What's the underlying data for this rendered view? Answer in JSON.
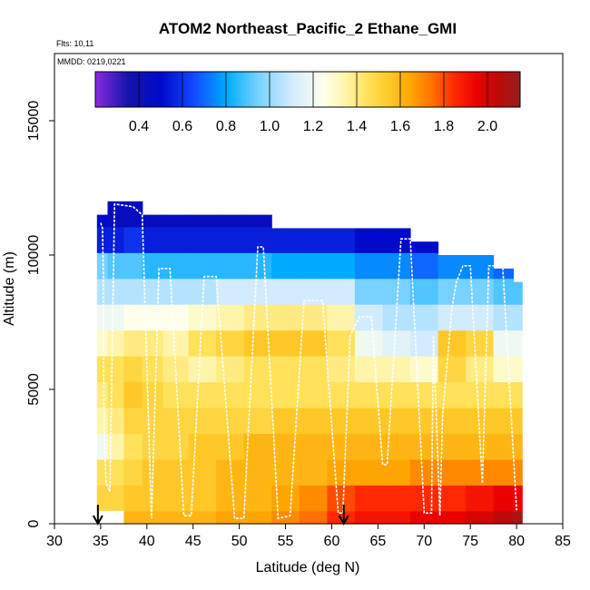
{
  "chart_data": {
    "type": "heatmap",
    "title": "ATOM2 Northeast_Pacific_2 Ethane_GMI",
    "flights_label": "Flts: 10,11",
    "dates_label": "MMDD: 0219,0221",
    "xlabel": "Latitude (deg N)",
    "ylabel": "Altitude (m)",
    "xlim": [
      30,
      85
    ],
    "ylim": [
      0,
      17500
    ],
    "x_ticks": [
      "30",
      "35",
      "40",
      "45",
      "50",
      "55",
      "60",
      "65",
      "70",
      "75",
      "80",
      "85"
    ],
    "y_ticks": [
      "0",
      "5000",
      "10000",
      "15000"
    ],
    "colorbar": {
      "range": [
        0.2,
        2.15
      ],
      "tick_labels": [
        "0.4",
        "0.6",
        "0.8",
        "1.0",
        "1.2",
        "1.4",
        "1.6",
        "1.8",
        "2.0"
      ]
    },
    "arrow_latitudes": [
      34.7,
      61.3
    ],
    "columns": [
      {
        "lat": 35.0,
        "top": 11500,
        "bot": 500,
        "profile": [
          1.55,
          1.5,
          1.45,
          1.2,
          1.35,
          1.4,
          1.45,
          1.3,
          1.2,
          1.05,
          0.95,
          0.55,
          0.5,
          0.4
        ]
      },
      {
        "lat": 36.5,
        "top": 12000,
        "bot": 500,
        "profile": [
          1.55,
          1.5,
          1.45,
          1.35,
          1.4,
          1.45,
          1.45,
          1.35,
          1.2,
          1.05,
          0.9,
          0.55,
          0.45,
          0.35
        ]
      },
      {
        "lat": 38.5,
        "top": 12000,
        "bot": 0,
        "profile": [
          1.6,
          1.55,
          1.5,
          1.45,
          1.5,
          1.55,
          1.5,
          1.4,
          1.25,
          1.05,
          0.9,
          0.6,
          0.45,
          0.35
        ]
      },
      {
        "lat": 40.5,
        "top": 11500,
        "bot": 0,
        "profile": [
          1.6,
          1.55,
          1.55,
          1.5,
          1.5,
          1.5,
          1.45,
          1.4,
          1.25,
          1.05,
          0.85,
          0.55,
          0.45,
          0.35
        ]
      },
      {
        "lat": 43.0,
        "top": 11500,
        "bot": 0,
        "profile": [
          1.6,
          1.55,
          1.55,
          1.5,
          1.5,
          1.45,
          1.4,
          1.35,
          1.25,
          1.05,
          0.85,
          0.55,
          0.45,
          0.35
        ]
      },
      {
        "lat": 46.0,
        "top": 11500,
        "bot": 0,
        "profile": [
          1.6,
          1.55,
          1.55,
          1.55,
          1.5,
          1.45,
          1.35,
          1.45,
          1.3,
          1.05,
          0.85,
          0.55,
          0.45,
          0.35
        ]
      },
      {
        "lat": 49.0,
        "top": 11500,
        "bot": 0,
        "profile": [
          1.65,
          1.6,
          1.6,
          1.55,
          1.5,
          1.45,
          1.4,
          1.5,
          1.35,
          1.1,
          0.85,
          0.55,
          0.45,
          0.35
        ]
      },
      {
        "lat": 52.0,
        "top": 11500,
        "bot": 0,
        "profile": [
          1.65,
          1.6,
          1.6,
          1.6,
          1.5,
          1.45,
          1.45,
          1.55,
          1.4,
          1.1,
          0.85,
          0.55,
          0.45,
          0.35
        ]
      },
      {
        "lat": 55.0,
        "top": 11000,
        "bot": 0,
        "profile": [
          1.7,
          1.65,
          1.6,
          1.6,
          1.55,
          1.45,
          1.45,
          1.55,
          1.4,
          1.1,
          0.8,
          0.55,
          0.45,
          0.35
        ]
      },
      {
        "lat": 58.0,
        "top": 11000,
        "bot": 0,
        "profile": [
          1.75,
          1.7,
          1.6,
          1.6,
          1.55,
          1.45,
          1.45,
          1.55,
          1.4,
          1.1,
          0.8,
          0.55,
          0.45,
          0.35
        ]
      },
      {
        "lat": 61.0,
        "top": 11000,
        "bot": 0,
        "profile": [
          1.85,
          1.8,
          1.65,
          1.6,
          1.55,
          1.45,
          1.4,
          1.45,
          1.35,
          1.1,
          0.8,
          0.55,
          0.45,
          0.35
        ]
      },
      {
        "lat": 64.0,
        "top": 11000,
        "bot": 0,
        "profile": [
          1.9,
          1.85,
          1.65,
          1.6,
          1.55,
          1.45,
          1.35,
          1.2,
          1.1,
          0.95,
          0.75,
          0.5,
          0.45,
          0.35
        ]
      },
      {
        "lat": 67.0,
        "top": 11000,
        "bot": 0,
        "profile": [
          1.9,
          1.85,
          1.65,
          1.6,
          1.55,
          1.45,
          1.35,
          1.15,
          1.05,
          0.95,
          0.75,
          0.5,
          0.45,
          0.35
        ]
      },
      {
        "lat": 70.0,
        "top": 10500,
        "bot": 0,
        "profile": [
          1.95,
          1.85,
          1.7,
          1.6,
          1.55,
          1.45,
          1.3,
          1.1,
          1.05,
          0.9,
          0.7,
          0.5,
          0.4,
          0.35
        ]
      },
      {
        "lat": 73.0,
        "top": 10000,
        "bot": 0,
        "profile": [
          1.95,
          1.85,
          1.7,
          1.6,
          1.55,
          1.45,
          1.5,
          1.55,
          1.1,
          0.95,
          0.75,
          0.5,
          0.4,
          0.35
        ]
      },
      {
        "lat": 76.0,
        "top": 10000,
        "bot": 0,
        "profile": [
          2.0,
          1.9,
          1.7,
          1.6,
          1.55,
          1.45,
          1.4,
          1.5,
          1.1,
          0.95,
          0.75,
          0.5,
          0.45,
          0.35
        ]
      },
      {
        "lat": 79.0,
        "top": 9500,
        "bot": 0,
        "profile": [
          2.05,
          1.95,
          1.7,
          1.6,
          1.55,
          1.45,
          1.3,
          1.2,
          1.05,
          0.9,
          0.7,
          0.5,
          0.4,
          0.35
        ]
      },
      {
        "lat": 80.3,
        "top": 9000,
        "bot": 0,
        "profile": [
          2.1,
          1.95,
          1.7,
          1.6,
          1.55,
          1.45,
          1.3,
          1.2,
          1.05,
          0.9,
          0.7,
          0.5,
          0.4,
          0.35
        ]
      }
    ],
    "flight_track": [
      [
        35.0,
        11200
      ],
      [
        35.2,
        11000
      ],
      [
        35.3,
        9000
      ],
      [
        35.3,
        6000
      ],
      [
        35.4,
        3000
      ],
      [
        35.6,
        1500
      ],
      [
        36.0,
        1200
      ],
      [
        36.5,
        11900
      ],
      [
        38.5,
        11800
      ],
      [
        39.5,
        11500
      ],
      [
        40.5,
        200
      ],
      [
        41.3,
        9500
      ],
      [
        42.5,
        9500
      ],
      [
        44.0,
        300
      ],
      [
        44.8,
        300
      ],
      [
        46.2,
        9200
      ],
      [
        47.5,
        9200
      ],
      [
        49.5,
        200
      ],
      [
        50.5,
        200
      ],
      [
        52.0,
        10300
      ],
      [
        52.6,
        10300
      ],
      [
        54.2,
        200
      ],
      [
        55.5,
        300
      ],
      [
        57.0,
        8300
      ],
      [
        59.0,
        8300
      ],
      [
        60.7,
        400
      ],
      [
        61.2,
        400
      ],
      [
        62.0,
        7000
      ],
      [
        63.0,
        7700
      ],
      [
        64.3,
        7700
      ],
      [
        65.5,
        2200
      ],
      [
        66.0,
        2200
      ],
      [
        67.5,
        10600
      ],
      [
        68.5,
        10600
      ],
      [
        70.0,
        400
      ],
      [
        70.8,
        400
      ],
      [
        71.0,
        7000
      ],
      [
        71.7,
        300
      ],
      [
        72.0,
        4000
      ],
      [
        73.0,
        8000
      ],
      [
        73.5,
        9000
      ],
      [
        74.2,
        9600
      ],
      [
        75.0,
        9600
      ],
      [
        76.3,
        1500
      ],
      [
        77.0,
        9600
      ],
      [
        78.5,
        9600
      ],
      [
        80.0,
        500
      ]
    ]
  }
}
